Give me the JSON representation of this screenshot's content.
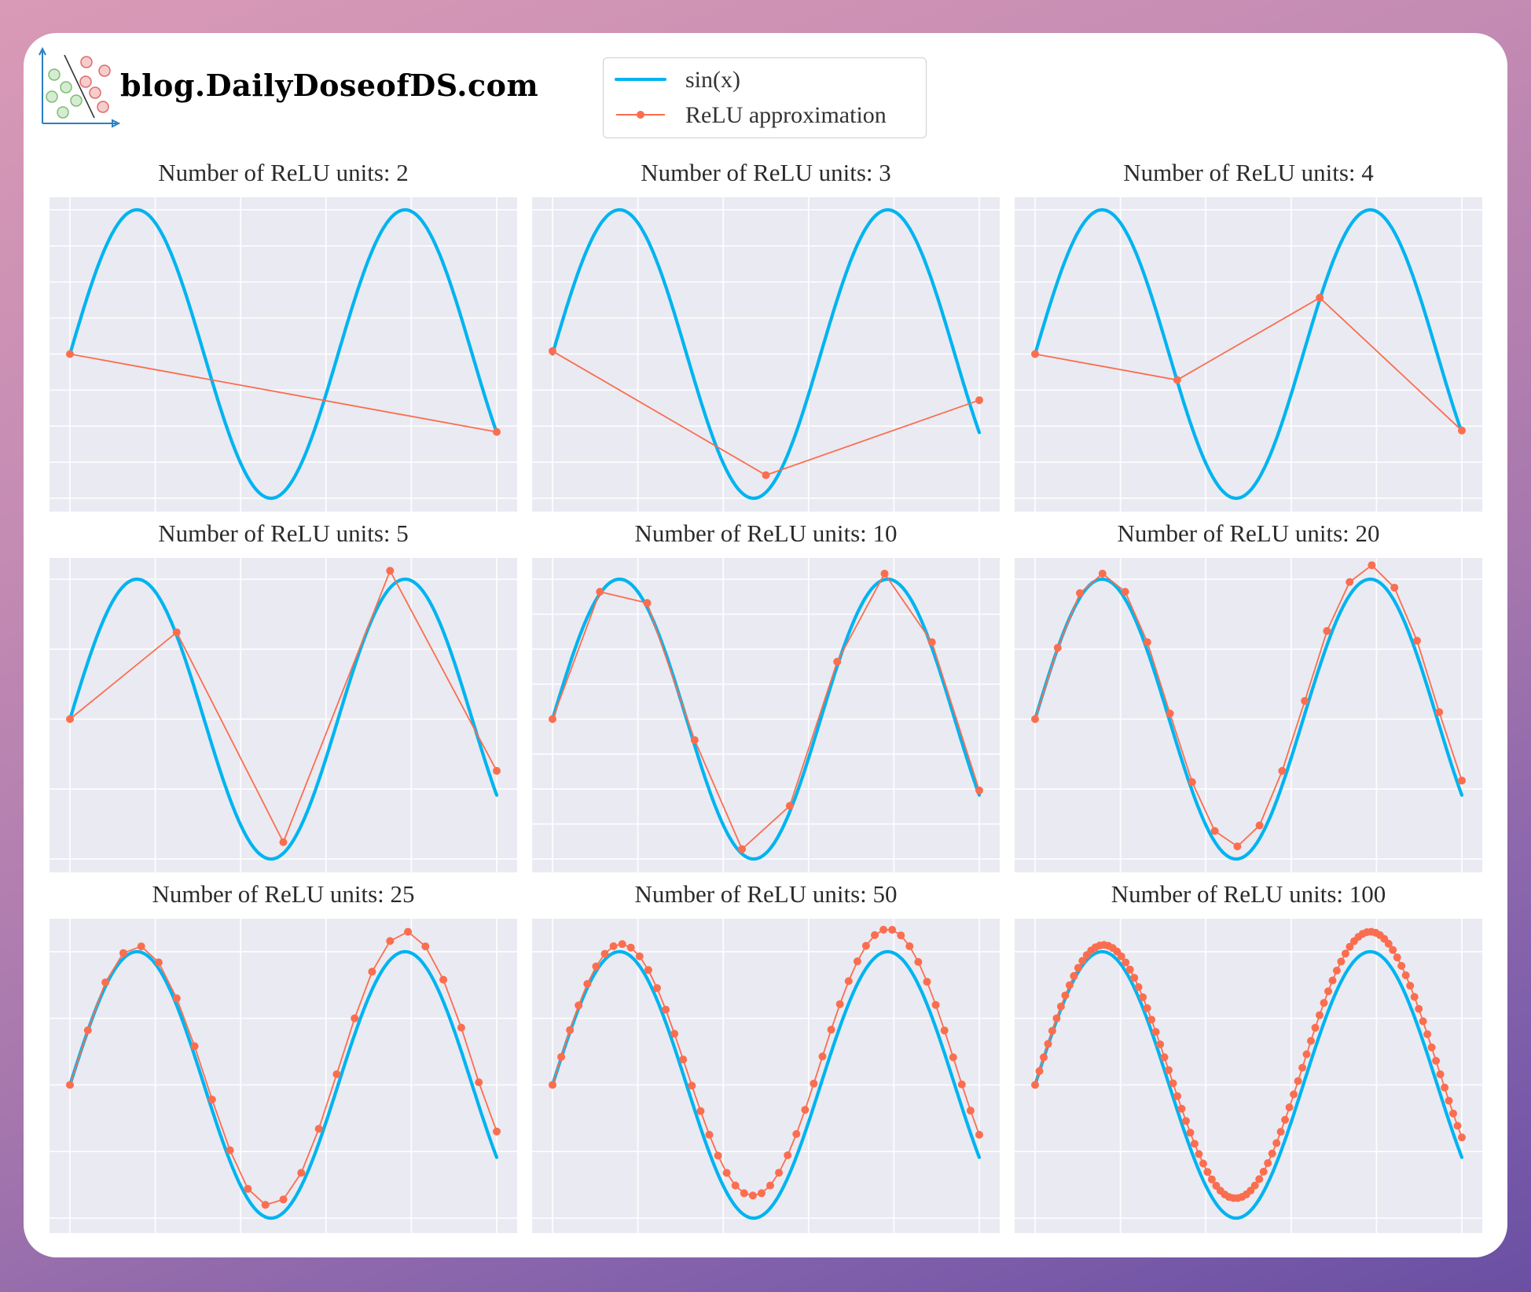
{
  "brand": {
    "text": "blog.DailyDoseofDS.com",
    "logo_icon": "classification-scatter-logo"
  },
  "colors": {
    "background_gradient": [
      "#d99ab6",
      "#6a4fa3"
    ],
    "card": "#ffffff",
    "plot_bg": "#eaeaf2",
    "grid": "#ffffff",
    "sin": "#00b4f0",
    "relu": "#fa6e4f",
    "title_text": "#2b2b2b"
  },
  "legend": {
    "items": [
      {
        "label": "sin(x)",
        "style": "line",
        "color": "#00b4f0"
      },
      {
        "label": "ReLU approximation",
        "style": "line-marker",
        "color": "#fa6e4f"
      }
    ]
  },
  "chart_data": [
    {
      "type": "line",
      "title": "Number of ReLU units: 2",
      "xlim": [
        -0.5,
        10.5
      ],
      "ylim": [
        -1.05,
        1.05
      ],
      "xticks": [
        0,
        2,
        4,
        6,
        8,
        10
      ],
      "yticks": [
        -1,
        -0.75,
        -0.5,
        -0.25,
        0,
        0.25,
        0.5,
        0.75,
        1
      ],
      "grid": true,
      "tick_labels_visible": false,
      "series": [
        {
          "name": "sin(x)",
          "function": "sin(x)",
          "x_range": [
            0,
            10
          ]
        },
        {
          "name": "ReLU approximation",
          "x": [
            0,
            10
          ],
          "y": [
            0.0,
            -0.54
          ]
        }
      ]
    },
    {
      "type": "line",
      "title": "Number of ReLU units: 3",
      "xlim": [
        -0.5,
        10.5
      ],
      "ylim": [
        -1.05,
        1.05
      ],
      "xticks": [
        0,
        2,
        4,
        6,
        8,
        10
      ],
      "yticks": [
        -1,
        -0.75,
        -0.5,
        -0.25,
        0,
        0.25,
        0.5,
        0.75,
        1
      ],
      "grid": true,
      "tick_labels_visible": false,
      "series": [
        {
          "name": "sin(x)",
          "function": "sin(x)",
          "x_range": [
            0,
            10
          ]
        },
        {
          "name": "ReLU approximation",
          "x": [
            0,
            5,
            10
          ],
          "y": [
            0.02,
            -0.84,
            -0.32
          ]
        }
      ]
    },
    {
      "type": "line",
      "title": "Number of ReLU units: 4",
      "xlim": [
        -0.5,
        10.5
      ],
      "ylim": [
        -1.05,
        1.05
      ],
      "xticks": [
        0,
        2,
        4,
        6,
        8,
        10
      ],
      "yticks": [
        -1,
        -0.75,
        -0.5,
        -0.25,
        0,
        0.25,
        0.5,
        0.75,
        1
      ],
      "grid": true,
      "tick_labels_visible": false,
      "series": [
        {
          "name": "sin(x)",
          "function": "sin(x)",
          "x_range": [
            0,
            10
          ]
        },
        {
          "name": "ReLU approximation",
          "x": [
            0,
            3.33,
            6.67,
            10
          ],
          "y": [
            0.0,
            -0.18,
            0.39,
            -0.53
          ]
        }
      ]
    },
    {
      "type": "line",
      "title": "Number of ReLU units: 5",
      "xlim": [
        -0.5,
        10.5
      ],
      "ylim": [
        -1.07,
        1.18
      ],
      "xticks": [
        0,
        2,
        4,
        6,
        8,
        10
      ],
      "yticks": [
        -1,
        -0.5,
        0,
        0.5,
        1
      ],
      "grid": true,
      "tick_labels_visible": false,
      "series": [
        {
          "name": "sin(x)",
          "function": "sin(x)",
          "x_range": [
            0,
            10
          ]
        },
        {
          "name": "ReLU approximation",
          "x": [
            0,
            2.5,
            5,
            7.5,
            10
          ],
          "y": [
            0.0,
            0.62,
            -0.88,
            1.06,
            -0.37
          ]
        }
      ]
    },
    {
      "type": "line",
      "title": "Number of ReLU units: 10",
      "xlim": [
        -0.5,
        10.5
      ],
      "ylim": [
        -1.07,
        1.18
      ],
      "xticks": [
        0,
        2,
        4,
        6,
        8,
        10
      ],
      "yticks": [
        -1,
        -0.75,
        -0.5,
        -0.25,
        0,
        0.25,
        0.5,
        0.75,
        1
      ],
      "grid": true,
      "tick_labels_visible": false,
      "series": [
        {
          "name": "sin(x)",
          "function": "sin(x)",
          "x_range": [
            0,
            10
          ]
        },
        {
          "name": "ReLU approximation",
          "x": [
            0,
            1.11,
            2.22,
            3.33,
            4.44,
            5.56,
            6.67,
            7.78,
            8.89,
            10
          ],
          "y": [
            0.0,
            0.91,
            0.83,
            -0.15,
            -0.93,
            -0.62,
            0.41,
            1.04,
            0.55,
            -0.51
          ]
        }
      ]
    },
    {
      "type": "line",
      "title": "Number of ReLU units: 20",
      "xlim": [
        -0.5,
        10.5
      ],
      "ylim": [
        -1.07,
        1.18
      ],
      "xticks": [
        0,
        2,
        4,
        6,
        8,
        10
      ],
      "yticks": [
        -1,
        -0.5,
        0,
        0.5,
        1
      ],
      "grid": true,
      "tick_labels_visible": false,
      "series": [
        {
          "name": "sin(x)",
          "function": "sin(x)",
          "x_range": [
            0,
            10
          ]
        },
        {
          "name": "ReLU approximation",
          "x": [
            0,
            0.53,
            1.05,
            1.58,
            2.11,
            2.63,
            3.16,
            3.68,
            4.21,
            4.74,
            5.26,
            5.79,
            6.32,
            6.84,
            7.37,
            7.89,
            8.42,
            8.95,
            9.47,
            10
          ],
          "y": [
            0.0,
            0.51,
            0.9,
            1.04,
            0.91,
            0.55,
            0.04,
            -0.45,
            -0.8,
            -0.91,
            -0.76,
            -0.37,
            0.13,
            0.63,
            0.98,
            1.1,
            0.94,
            0.56,
            0.05,
            -0.44
          ]
        }
      ]
    },
    {
      "type": "line",
      "title": "Number of ReLU units: 25",
      "xlim": [
        -0.5,
        10.5
      ],
      "ylim": [
        -1.08,
        1.2
      ],
      "xticks": [
        0,
        2,
        4,
        6,
        8,
        10
      ],
      "yticks": [
        -1,
        -0.5,
        0,
        0.5,
        1
      ],
      "grid": true,
      "tick_labels_visible": false,
      "series": [
        {
          "name": "sin(x)",
          "function": "sin(x)",
          "x_range": [
            0,
            10
          ]
        },
        {
          "name": "ReLU approximation",
          "x": [
            0,
            0.42,
            0.83,
            1.25,
            1.67,
            2.08,
            2.5,
            2.92,
            3.33,
            3.75,
            4.17,
            4.58,
            5.0,
            5.42,
            5.83,
            6.25,
            6.67,
            7.08,
            7.5,
            7.92,
            8.33,
            8.75,
            9.17,
            9.58,
            10
          ],
          "y": [
            0.0,
            0.41,
            0.77,
            0.99,
            1.04,
            0.92,
            0.65,
            0.29,
            -0.11,
            -0.49,
            -0.78,
            -0.9,
            -0.86,
            -0.66,
            -0.33,
            0.08,
            0.5,
            0.85,
            1.08,
            1.15,
            1.04,
            0.79,
            0.43,
            0.02,
            -0.35
          ]
        }
      ]
    },
    {
      "type": "line",
      "title": "Number of ReLU units: 50",
      "xlim": [
        -0.5,
        10.5
      ],
      "ylim": [
        -1.08,
        1.2
      ],
      "xticks": [
        0,
        2,
        4,
        6,
        8,
        10
      ],
      "yticks": [
        -1,
        -0.5,
        0,
        0.5,
        1
      ],
      "grid": true,
      "tick_labels_visible": false,
      "series": [
        {
          "name": "sin(x)",
          "function": "sin(x)",
          "x_range": [
            0,
            10
          ]
        },
        {
          "name": "ReLU approximation",
          "n_points": 50,
          "x_range": [
            0,
            10
          ],
          "approx_model": "sin(x) + 0.17*min(x/4.7,1)",
          "y_samples": {
            "x=0": 0.0,
            "peak1": 1.04,
            "trough": -0.83,
            "peak2": 1.15,
            "x=10": -0.37
          }
        }
      ]
    },
    {
      "type": "line",
      "title": "Number of ReLU units: 100",
      "xlim": [
        -0.5,
        10.5
      ],
      "ylim": [
        -1.08,
        1.2
      ],
      "xticks": [
        0,
        2,
        4,
        6,
        8,
        10
      ],
      "yticks": [
        -1,
        -0.5,
        0,
        0.5,
        1
      ],
      "grid": true,
      "tick_labels_visible": false,
      "series": [
        {
          "name": "sin(x)",
          "function": "sin(x)",
          "x_range": [
            0,
            10
          ]
        },
        {
          "name": "ReLU approximation",
          "n_points": 100,
          "x_range": [
            0,
            10
          ],
          "approx_model": "sin(x) + 0.15*min(x/4.7,1)",
          "y_samples": {
            "x=0": 0.0,
            "peak1": 1.03,
            "trough": -0.87,
            "peak2": 1.15,
            "x=10": -0.37
          }
        }
      ]
    }
  ]
}
